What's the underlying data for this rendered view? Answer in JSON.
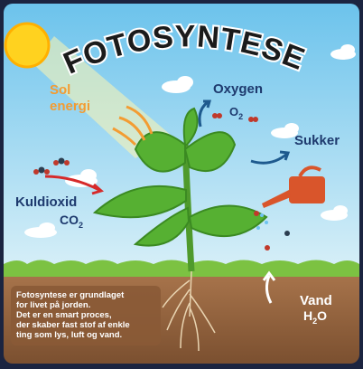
{
  "title": "FOTOSYNTESE",
  "labels": {
    "sun_energy": [
      "Sol",
      "energi"
    ],
    "oxygen": "Oxygen",
    "oxygen_formula": {
      "symbol": "O",
      "subscript": "2"
    },
    "sugar": "Sukker",
    "co2": "Kuldioxid",
    "co2_formula": {
      "symbol": "CO",
      "subscript": "2"
    },
    "water": "Vand",
    "water_formula": {
      "symbol": "H",
      "subscript": "2",
      "rest": "O"
    }
  },
  "description": [
    "Fotosyntese er grundlaget",
    "for livet på jorden.",
    "Det er en smart proces,",
    "der skaber fast stof af enkle",
    "ting som lys, luft og vand."
  ]
}
